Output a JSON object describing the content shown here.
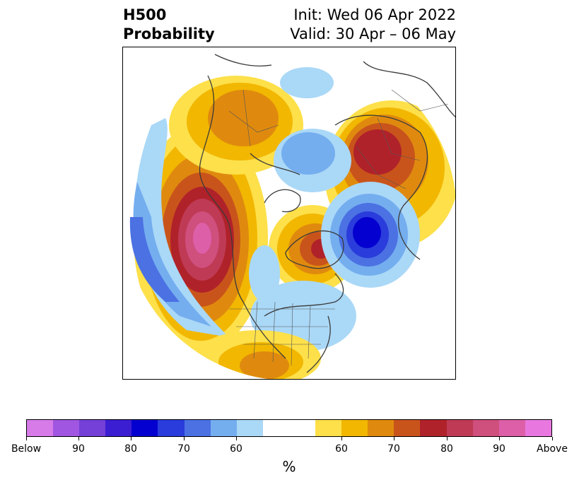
{
  "header": {
    "title_line1": "H500",
    "title_line2": "Probability",
    "init": "Init: Wed 06 Apr 2022",
    "valid": "Valid: 30 Apr – 06 May"
  },
  "colorbar": {
    "label": "%",
    "colors": [
      "#d77be9",
      "#a056e0",
      "#7440d8",
      "#3c1ed2",
      "#0400cf",
      "#2a3cdb",
      "#4b71e3",
      "#74aeef",
      "#aad8f7",
      "#ffffff",
      "#ffffff",
      "#fde04a",
      "#f2b700",
      "#df8a0f",
      "#c9541b",
      "#b0222a",
      "#bf3a55",
      "#cf4f7d",
      "#dd5fa8",
      "#e878df"
    ],
    "tick_labels": [
      "Below",
      "90",
      "80",
      "70",
      "60",
      "60",
      "70",
      "80",
      "90",
      "Above"
    ]
  },
  "map": {
    "projection": "north-polar-stereographic",
    "features": [
      "H500 probability shading",
      "coastlines",
      "country borders",
      "US state borders"
    ]
  }
}
